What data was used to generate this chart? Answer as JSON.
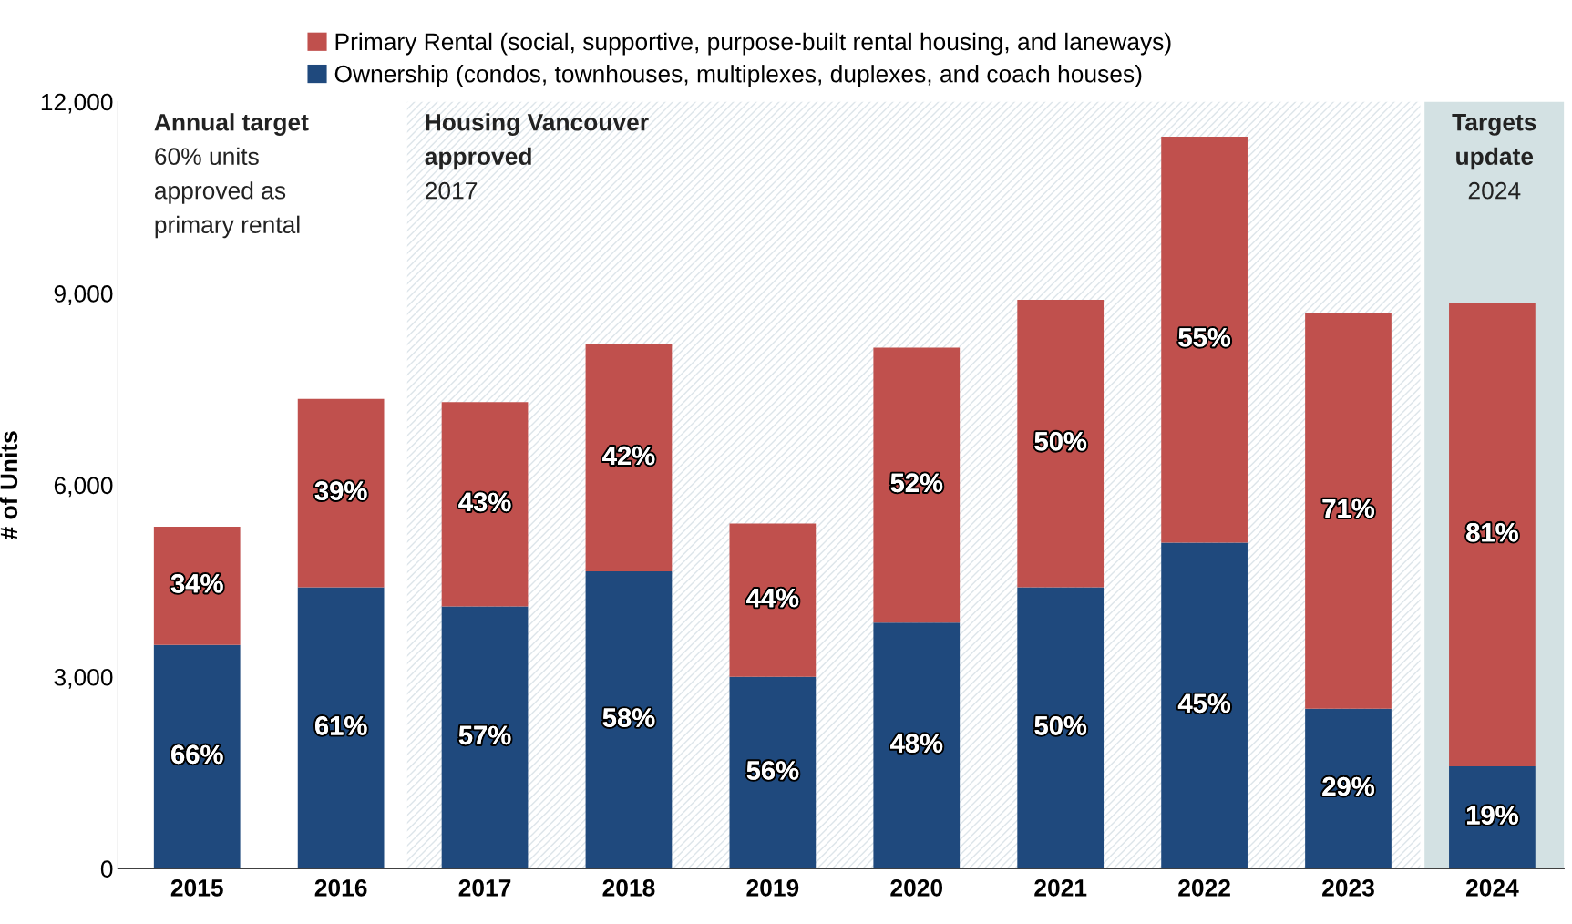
{
  "chart_data": {
    "type": "bar",
    "stacked": true,
    "ylabel": "# of Units",
    "categories": [
      "2015",
      "2016",
      "2017",
      "2018",
      "2019",
      "2020",
      "2021",
      "2022",
      "2023",
      "2024"
    ],
    "series": [
      {
        "name": "Ownership (condos, townhouses, multiplexes, duplexes, and coach houses)",
        "color": "#1f497d",
        "values": [
          3500,
          4400,
          4100,
          4650,
          3000,
          3850,
          4400,
          5100,
          2500,
          1600
        ]
      },
      {
        "name": "Primary Rental (social, supportive, purpose-built rental housing, and laneways)",
        "color": "#c0504d",
        "values": [
          1850,
          2950,
          3200,
          3550,
          2400,
          4300,
          4500,
          6350,
          6200,
          7250
        ]
      }
    ],
    "ylim": [
      0,
      12000
    ],
    "yticks": [
      {
        "value": 0,
        "label": "0"
      },
      {
        "value": 3000,
        "label": "3,000"
      },
      {
        "value": 6000,
        "label": "6,000"
      },
      {
        "value": 9000,
        "label": "9,000"
      },
      {
        "value": 12000,
        "label": "12,000"
      }
    ],
    "bands": [
      {
        "axis": "x",
        "from": "2017",
        "to": "2023",
        "label": "Housing Vancouver\napproved\n2017",
        "color": "#dde5ea"
      },
      {
        "axis": "x",
        "from": "2024",
        "to": "2024",
        "label": "Targets\nupdate\n2024",
        "color": "#d3e1e3"
      }
    ],
    "annotations": [
      "Annual target\n60% units\napproved as\nprimary rental",
      "66%",
      "34%",
      "61%",
      "39%",
      "57%",
      "43%",
      "58%",
      "42%",
      "56%",
      "44%",
      "48%",
      "52%",
      "50%",
      "50%",
      "45%",
      "55%",
      "29%",
      "71%",
      "19%",
      "81%"
    ],
    "legend": "top",
    "grid": false
  }
}
